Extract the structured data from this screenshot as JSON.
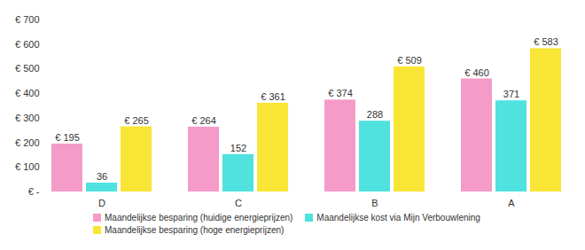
{
  "chart_data": {
    "type": "bar",
    "categories": [
      "D",
      "C",
      "B",
      "A"
    ],
    "series": [
      {
        "name": "Maandelijkse besparing (huidige energieprijzen)",
        "color": "#f59bc8",
        "values": [
          195,
          264,
          374,
          460
        ],
        "value_labels": [
          "€ 195",
          "€ 264",
          "€ 374",
          "€ 460"
        ]
      },
      {
        "name": "Maandelijkse kost via Mijn Verbouwlening",
        "color": "#4fe2df",
        "values": [
          36,
          152,
          288,
          371
        ],
        "value_labels": [
          "36",
          "152",
          "288",
          "371"
        ]
      },
      {
        "name": "Maandelijkse besparing (hoge energieprijzen)",
        "color": "#f8e535",
        "values": [
          265,
          361,
          509,
          583
        ],
        "value_labels": [
          "€ 265",
          "€ 361",
          "€ 509",
          "€ 583"
        ]
      }
    ],
    "ylim": [
      0,
      700
    ],
    "yticks": [
      {
        "value": 0,
        "label": "€ -"
      },
      {
        "value": 100,
        "label": "€ 100"
      },
      {
        "value": 200,
        "label": "€ 200"
      },
      {
        "value": 300,
        "label": "€ 300"
      },
      {
        "value": 400,
        "label": "€ 400"
      },
      {
        "value": 500,
        "label": "€ 500"
      },
      {
        "value": 600,
        "label": "€ 600"
      },
      {
        "value": 700,
        "label": "€ 700"
      }
    ],
    "grid": false,
    "data_labels": true,
    "legend": "bottom"
  }
}
